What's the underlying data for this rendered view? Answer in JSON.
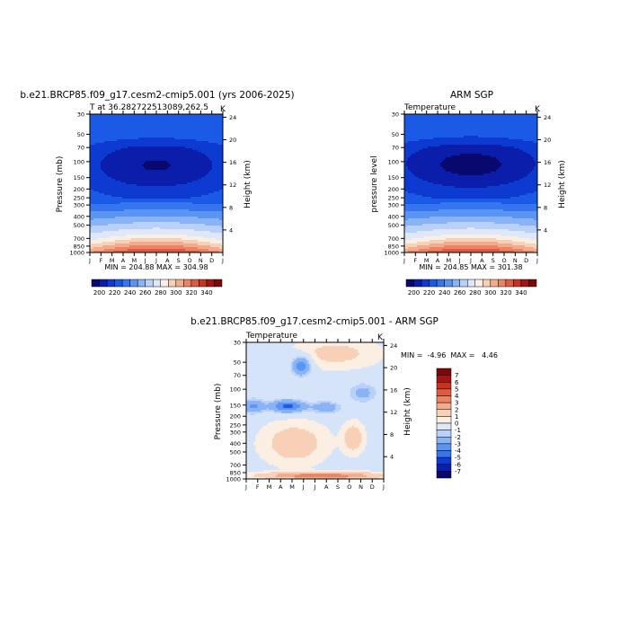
{
  "palette": [
    "#08086e",
    "#0a1eab",
    "#0d3bd1",
    "#1a5ae6",
    "#3576f0",
    "#5b95f4",
    "#8ab3f6",
    "#b9d1f8",
    "#dfe8fa",
    "#fbeee2",
    "#f8d0b7",
    "#f2ab8d",
    "#ea8465",
    "#df5a42",
    "#c8321f",
    "#a31414",
    "#7a0808"
  ],
  "months": [
    "J",
    "F",
    "M",
    "A",
    "M",
    "J",
    "J",
    "A",
    "S",
    "O",
    "N",
    "D",
    "J"
  ],
  "pressure_ticks": [
    "30",
    "50",
    "70",
    "100",
    "150",
    "200",
    "250",
    "300",
    "400",
    "500",
    "700",
    "850",
    "1000"
  ],
  "pressure_values": [
    30,
    50,
    70,
    100,
    150,
    200,
    250,
    300,
    400,
    500,
    700,
    850,
    1000
  ],
  "height_ticks": [
    "24",
    "20",
    "16",
    "12",
    "8",
    "4"
  ],
  "height_values": [
    24,
    20,
    16,
    12,
    8,
    4
  ],
  "chart_data": [
    {
      "id": "model",
      "type": "heatmap",
      "title": "b.e21.BRCP85.f09_g17.cesm2-cmip5.001 (yrs 2006-2025)",
      "subtitle_left": "T at 36.282722513089,262.5",
      "unit": "K",
      "xlabel": "",
      "ylabel_left": "Pressure (mb)",
      "ylabel_right": "Height (km)",
      "minmax_text": "MIN = 204.88  MAX = 304.98",
      "min": 204.88,
      "max": 304.98,
      "colorbar_labels": [
        "200",
        "220",
        "240",
        "260",
        "280",
        "300",
        "320",
        "340"
      ]
    },
    {
      "id": "obs",
      "type": "heatmap",
      "title": "ARM SGP",
      "subtitle_left": "Temperature",
      "unit": "K",
      "xlabel": "",
      "ylabel_left": "pressure level",
      "ylabel_right": "Height (km)",
      "minmax_text": "MIN = 204.85  MAX = 301.38",
      "min": 204.85,
      "max": 301.38,
      "colorbar_labels": [
        "200",
        "220",
        "240",
        "260",
        "280",
        "300",
        "320",
        "340"
      ]
    },
    {
      "id": "diff",
      "type": "heatmap",
      "title": "b.e21.BRCP85.f09_g17.cesm2-cmip5.001 - ARM SGP",
      "subtitle_left": "Temperature",
      "unit": "K",
      "xlabel": "",
      "ylabel_left": "Pressure (mb)",
      "ylabel_right": "Height (km)",
      "minmax_text": "MIN =  -4.96  MAX =   4.46",
      "min": -4.96,
      "max": 4.46,
      "colorbar_labels": [
        "7",
        "6",
        "5",
        "4",
        "3",
        "2",
        "1",
        "0",
        "-1",
        "-2",
        "-3",
        "-4",
        "-5",
        "-6",
        "-7"
      ]
    }
  ]
}
